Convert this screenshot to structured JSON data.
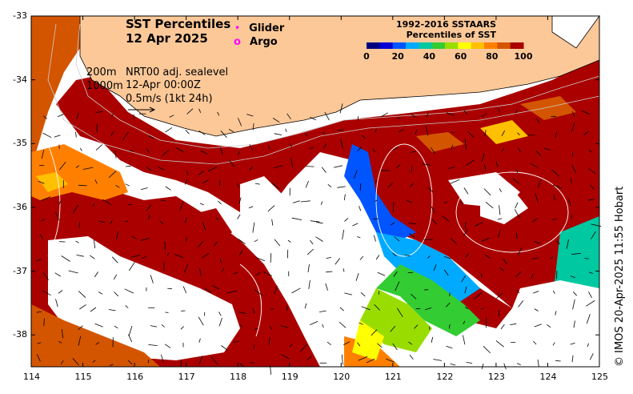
{
  "title": {
    "line1": "SST Percentiles",
    "line2": "12 Apr 2025"
  },
  "markers": {
    "glider_label": "Glider",
    "argo_label": "Argo",
    "glider_symbol": "•",
    "argo_symbol": "o",
    "color": "#ff00ff"
  },
  "annotations": {
    "contour_200": "200m",
    "contour_1000": "1000m",
    "sealevel_product": "NRT00 adj. sealevel",
    "datetime": "12-Apr 00:00Z",
    "scale_arrow": "0.5m/s (1kt 24h)"
  },
  "colorbar": {
    "title_line1": "1992-2016 SSTAARS",
    "title_line2": "Percentiles of SST",
    "ticks": [
      "0",
      "20",
      "40",
      "60",
      "80",
      "100"
    ],
    "colors": [
      "#00007f",
      "#0000d4",
      "#0055ff",
      "#00aaff",
      "#00c8a0",
      "#33cc33",
      "#99dd00",
      "#ffff00",
      "#ffc000",
      "#ff8000",
      "#d45500",
      "#aa0000"
    ]
  },
  "axes": {
    "x_ticks": [
      "114",
      "115",
      "116",
      "117",
      "118",
      "119",
      "120",
      "121",
      "122",
      "123",
      "124",
      "125"
    ],
    "y_ticks": [
      "-33",
      "-34",
      "-35",
      "-36",
      "-37",
      "-38"
    ],
    "lon_range": [
      114,
      125
    ],
    "lat_range": [
      -38.5,
      -33
    ]
  },
  "credit": "© IMOS 20-Apr-2025 11:55 Hobart",
  "colors": {
    "land": "#fdc898",
    "high_percentile": "#aa0000",
    "no_data": "#ffffff"
  }
}
